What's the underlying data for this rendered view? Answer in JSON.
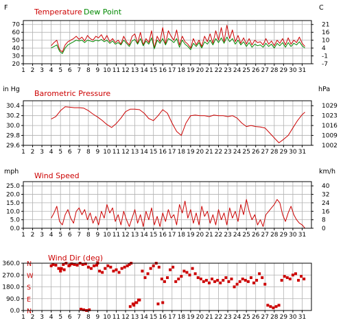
{
  "colors": {
    "temperature": "#cc0000",
    "dew_point": "#008800",
    "pressure": "#cc0000",
    "wind": "#cc0000",
    "grid": "#b0b0b0"
  },
  "x_ticks": [
    "1",
    "2",
    "3",
    "4",
    "5",
    "6",
    "7",
    "8",
    "9",
    "10",
    "11",
    "12",
    "13",
    "14",
    "15",
    "16",
    "17",
    "18",
    "19",
    "20",
    "21",
    "22",
    "23",
    "24",
    "25",
    "26",
    "27",
    "28",
    "29",
    "30",
    "31"
  ],
  "chart_data": [
    {
      "type": "line",
      "title_parts": [
        "Temperature",
        "Dew Point"
      ],
      "ylabel": "F",
      "ylabel_right": "C",
      "ylim": [
        20,
        75
      ],
      "y_ticks": [
        "70",
        "60",
        "50",
        "40",
        "30",
        "20"
      ],
      "y_ticks_right": [
        "21",
        "16",
        "10",
        "4",
        "-1",
        "-7"
      ],
      "xlim": [
        1,
        32
      ],
      "series": [
        {
          "name": "Temperature",
          "x": [
            4.0,
            4.3,
            4.6,
            4.9,
            5.2,
            5.5,
            5.8,
            6.1,
            6.4,
            6.7,
            7.0,
            7.3,
            7.6,
            7.9,
            8.2,
            8.5,
            8.8,
            9.1,
            9.4,
            9.7,
            10.0,
            10.3,
            10.6,
            10.9,
            11.2,
            11.5,
            11.8,
            12.1,
            12.4,
            12.7,
            13.0,
            13.3,
            13.6,
            13.9,
            14.2,
            14.5,
            14.8,
            15.1,
            15.4,
            15.7,
            16.0,
            16.3,
            16.6,
            16.9,
            17.2,
            17.5,
            17.8,
            18.1,
            18.4,
            18.7,
            19.0,
            19.3,
            19.6,
            19.9,
            20.2,
            20.5,
            20.8,
            21.1,
            21.4,
            21.7,
            22.0,
            22.3,
            22.6,
            22.9,
            23.2,
            23.5,
            23.8,
            24.1,
            24.4,
            24.7,
            25.0,
            25.3,
            25.6,
            25.9,
            26.2,
            26.5,
            26.8,
            27.1,
            27.4,
            27.7,
            28.0,
            28.3,
            28.6,
            28.9,
            29.2,
            29.5,
            29.8,
            30.1,
            30.4,
            30.7,
            31.0,
            31.3
          ],
          "values": [
            43,
            47,
            50,
            38,
            35,
            44,
            48,
            50,
            52,
            55,
            51,
            54,
            49,
            56,
            52,
            50,
            55,
            53,
            57,
            50,
            56,
            48,
            52,
            47,
            50,
            45,
            55,
            48,
            44,
            55,
            58,
            46,
            60,
            44,
            52,
            47,
            62,
            40,
            55,
            48,
            66,
            45,
            62,
            55,
            50,
            63,
            44,
            55,
            48,
            45,
            40,
            52,
            44,
            50,
            42,
            55,
            48,
            58,
            46,
            62,
            50,
            66,
            48,
            69,
            52,
            63,
            48,
            56,
            46,
            53,
            45,
            52,
            44,
            50,
            47,
            48,
            44,
            52,
            45,
            49,
            43,
            50,
            46,
            52,
            44,
            53,
            45,
            50,
            47,
            54,
            46,
            42
          ]
        },
        {
          "name": "Dew Point",
          "x": [
            4.0,
            4.3,
            4.6,
            4.9,
            5.2,
            5.5,
            5.8,
            6.1,
            6.4,
            6.7,
            7.0,
            7.3,
            7.6,
            7.9,
            8.2,
            8.5,
            8.8,
            9.1,
            9.4,
            9.7,
            10.0,
            10.3,
            10.6,
            10.9,
            11.2,
            11.5,
            11.8,
            12.1,
            12.4,
            12.7,
            13.0,
            13.3,
            13.6,
            13.9,
            14.2,
            14.5,
            14.8,
            15.1,
            15.4,
            15.7,
            16.0,
            16.3,
            16.6,
            16.9,
            17.2,
            17.5,
            17.8,
            18.1,
            18.4,
            18.7,
            19.0,
            19.3,
            19.6,
            19.9,
            20.2,
            20.5,
            20.8,
            21.1,
            21.4,
            21.7,
            22.0,
            22.3,
            22.6,
            22.9,
            23.2,
            23.5,
            23.8,
            24.1,
            24.4,
            24.7,
            25.0,
            25.3,
            25.6,
            25.9,
            26.2,
            26.5,
            26.8,
            27.1,
            27.4,
            27.7,
            28.0,
            28.3,
            28.6,
            28.9,
            29.2,
            29.5,
            29.8,
            30.1,
            30.4,
            30.7,
            31.0,
            31.3
          ],
          "values": [
            40,
            42,
            44,
            36,
            33,
            40,
            44,
            46,
            48,
            50,
            49,
            50,
            47,
            50,
            49,
            48,
            50,
            49,
            51,
            48,
            50,
            46,
            49,
            45,
            47,
            44,
            50,
            46,
            42,
            49,
            51,
            45,
            52,
            43,
            49,
            45,
            53,
            39,
            50,
            46,
            52,
            44,
            52,
            50,
            47,
            52,
            41,
            50,
            45,
            42,
            38,
            46,
            42,
            47,
            40,
            48,
            45,
            50,
            44,
            52,
            47,
            53,
            46,
            54,
            48,
            52,
            45,
            50,
            44,
            48,
            42,
            47,
            41,
            45,
            43,
            44,
            41,
            46,
            42,
            45,
            40,
            46,
            43,
            47,
            41,
            47,
            42,
            46,
            44,
            48,
            43,
            40
          ]
        }
      ]
    },
    {
      "type": "line",
      "title": "Barometric Pressure",
      "ylabel": "in Hg",
      "ylabel_right": "hPa",
      "ylim": [
        29.6,
        30.5
      ],
      "y_ticks": [
        "30.4",
        "30.2",
        "30.0",
        "29.8",
        "29.6"
      ],
      "y_ticks_right": [
        "1029",
        "1023",
        "1016",
        "1009",
        "1002"
      ],
      "xlim": [
        1,
        32
      ],
      "series": [
        {
          "name": "Barometric Pressure",
          "x": [
            4.0,
            4.5,
            5.0,
            5.5,
            6.0,
            6.5,
            7.0,
            7.5,
            8.0,
            8.5,
            9.0,
            9.5,
            10.0,
            10.5,
            11.0,
            11.5,
            12.0,
            12.5,
            13.0,
            13.5,
            14.0,
            14.5,
            15.0,
            15.5,
            16.0,
            16.5,
            17.0,
            17.5,
            18.0,
            18.5,
            19.0,
            19.5,
            20.0,
            20.5,
            21.0,
            21.5,
            22.0,
            22.5,
            23.0,
            23.5,
            24.0,
            24.5,
            25.0,
            25.5,
            26.0,
            26.5,
            27.0,
            27.5,
            28.0,
            28.5,
            29.0,
            29.5,
            30.0,
            30.5,
            31.0,
            31.3
          ],
          "values": [
            30.13,
            30.18,
            30.3,
            30.38,
            30.37,
            30.36,
            30.36,
            30.35,
            30.3,
            30.23,
            30.17,
            30.1,
            30.02,
            29.96,
            30.04,
            30.15,
            30.28,
            30.33,
            30.33,
            30.32,
            30.25,
            30.14,
            30.1,
            30.2,
            30.32,
            30.25,
            30.05,
            29.88,
            29.8,
            30.05,
            30.2,
            30.21,
            30.2,
            30.2,
            30.18,
            30.21,
            30.2,
            30.2,
            30.18,
            30.2,
            30.15,
            30.05,
            29.98,
            30.0,
            29.98,
            29.97,
            29.95,
            29.85,
            29.75,
            29.65,
            29.72,
            29.8,
            29.95,
            30.1,
            30.22,
            30.27
          ]
        }
      ]
    },
    {
      "type": "line",
      "title": "Wind Speed",
      "ylabel": "mph",
      "ylabel_right": "km/h",
      "ylim": [
        0,
        27.5
      ],
      "y_ticks": [
        "25.0",
        "20.0",
        "15.0",
        "10.0",
        "5.0",
        "0.0"
      ],
      "y_ticks_right": [
        "40",
        "32",
        "24",
        "16",
        "8",
        "0"
      ],
      "xlim": [
        1,
        32
      ],
      "series": [
        {
          "name": "Wind Speed",
          "x": [
            4.0,
            4.3,
            4.6,
            4.9,
            5.2,
            5.5,
            5.8,
            6.1,
            6.4,
            6.7,
            7.0,
            7.3,
            7.6,
            7.9,
            8.2,
            8.5,
            8.8,
            9.1,
            9.4,
            9.7,
            10.0,
            10.3,
            10.6,
            10.9,
            11.2,
            11.5,
            11.8,
            12.1,
            12.4,
            12.7,
            13.0,
            13.3,
            13.6,
            13.9,
            14.2,
            14.5,
            14.8,
            15.1,
            15.4,
            15.7,
            16.0,
            16.3,
            16.6,
            16.9,
            17.2,
            17.5,
            17.8,
            18.1,
            18.4,
            18.7,
            19.0,
            19.3,
            19.6,
            19.9,
            20.2,
            20.5,
            20.8,
            21.1,
            21.4,
            21.7,
            22.0,
            22.3,
            22.6,
            22.9,
            23.2,
            23.5,
            23.8,
            24.1,
            24.4,
            24.7,
            25.0,
            25.3,
            25.6,
            25.9,
            26.2,
            26.5,
            26.8,
            27.1,
            27.4,
            27.7,
            28.0,
            28.3,
            28.6,
            28.9,
            29.2,
            29.5,
            29.8,
            30.1,
            30.4,
            30.7,
            31.0,
            31.3
          ],
          "values": [
            6,
            9,
            13,
            4,
            2,
            8,
            11,
            6,
            3,
            10,
            12,
            8,
            11,
            5,
            9,
            3,
            7,
            2,
            10,
            6,
            14,
            9,
            12,
            4,
            8,
            2,
            10,
            5,
            1,
            6,
            11,
            3,
            8,
            1,
            10,
            5,
            12,
            2,
            7,
            1,
            9,
            4,
            11,
            6,
            8,
            2,
            14,
            9,
            16,
            6,
            11,
            3,
            9,
            2,
            13,
            7,
            10,
            3,
            8,
            2,
            11,
            5,
            9,
            2,
            12,
            6,
            10,
            4,
            14,
            8,
            17,
            10,
            5,
            8,
            2,
            5,
            1,
            8,
            10,
            12,
            14,
            17,
            15,
            8,
            4,
            9,
            13,
            8,
            5,
            3,
            2,
            0
          ]
        }
      ]
    },
    {
      "type": "scatter",
      "title": "Wind Dir (deg)",
      "ylim": [
        0,
        360
      ],
      "y_ticks": [
        "360.0",
        "270.0",
        "180.0",
        "90.0",
        "0.0"
      ],
      "direction_labels": [
        "N",
        "W",
        "S",
        "E",
        "N"
      ],
      "xlim": [
        1,
        32
      ],
      "series": [
        {
          "name": "Wind Dir",
          "x": [
            4.0,
            4.2,
            4.5,
            4.8,
            5.0,
            5.3,
            5.6,
            5.9,
            6.2,
            6.5,
            6.8,
            7.1,
            7.4,
            7.7,
            8.0,
            8.3,
            8.6,
            8.9,
            9.2,
            9.5,
            9.8,
            10.1,
            10.4,
            10.7,
            11.0,
            11.3,
            11.6,
            11.9,
            12.2,
            12.4,
            12.6,
            12.9,
            13.2,
            13.5,
            13.8,
            14.1,
            14.4,
            14.7,
            15.0,
            15.3,
            15.6,
            15.9,
            16.2,
            16.5,
            16.8,
            17.1,
            17.4,
            17.7,
            18.0,
            18.3,
            18.6,
            18.9,
            19.2,
            19.5,
            19.8,
            20.1,
            20.4,
            20.7,
            21.0,
            21.3,
            21.6,
            21.9,
            22.2,
            22.5,
            22.8,
            23.1,
            23.4,
            23.7,
            24.0,
            24.3,
            24.6,
            24.9,
            25.2,
            25.5,
            25.8,
            26.1,
            26.4,
            26.7,
            27.0,
            27.3,
            27.6,
            27.9,
            28.2,
            28.5,
            28.8,
            29.1,
            29.4,
            29.7,
            30.0,
            30.3,
            30.6,
            30.9,
            31.2,
            5.1,
            5.4,
            7.2,
            7.5,
            7.8,
            8.1,
            12.5,
            12.8,
            13.1,
            13.4,
            15.5,
            16.0,
            6.0,
            9.0
          ],
          "values": [
            340,
            350,
            345,
            320,
            300,
            350,
            360,
            340,
            355,
            350,
            345,
            360,
            350,
            355,
            330,
            320,
            340,
            345,
            300,
            290,
            320,
            340,
            330,
            300,
            310,
            290,
            320,
            330,
            340,
            350,
            360,
            40,
            60,
            80,
            300,
            250,
            280,
            320,
            340,
            360,
            330,
            240,
            220,
            250,
            310,
            330,
            220,
            240,
            260,
            300,
            290,
            270,
            320,
            280,
            250,
            240,
            220,
            230,
            210,
            240,
            220,
            230,
            210,
            230,
            250,
            220,
            240,
            180,
            200,
            220,
            240,
            230,
            220,
            250,
            210,
            230,
            280,
            250,
            200,
            40,
            30,
            20,
            30,
            40,
            230,
            260,
            250,
            240,
            270,
            280,
            230,
            260,
            240,
            320,
            310,
            10,
            5,
            0,
            5,
            30,
            50,
            60,
            80,
            50,
            60,
            345,
            360
          ]
        }
      ]
    }
  ]
}
